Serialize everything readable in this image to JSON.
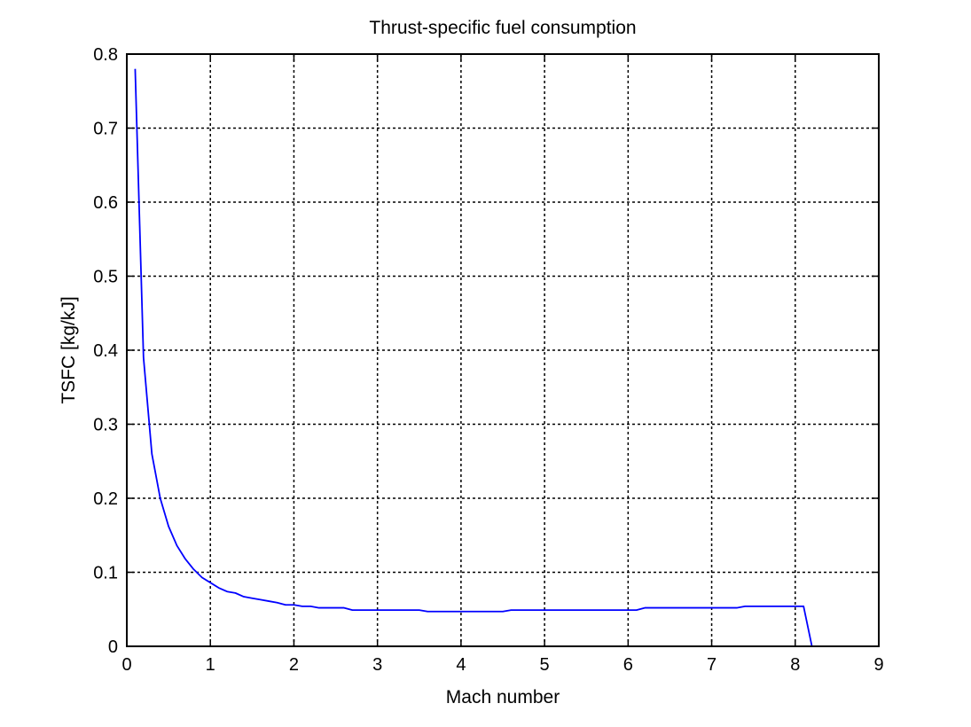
{
  "chart_data": {
    "type": "line",
    "title": "Thrust-specific fuel consumption",
    "xlabel": "Mach number",
    "ylabel": "TSFC [kg/kJ]",
    "xlim": [
      0,
      9
    ],
    "ylim": [
      0,
      0.8
    ],
    "xticks": [
      "0",
      "1",
      "2",
      "3",
      "4",
      "5",
      "6",
      "7",
      "8",
      "9"
    ],
    "yticks": [
      "0",
      "0.1",
      "0.2",
      "0.3",
      "0.4",
      "0.5",
      "0.6",
      "0.7",
      "0.8"
    ],
    "grid": true,
    "line_color": "#0000ff",
    "series": [
      {
        "x": [
          0.1,
          0.2,
          0.3,
          0.4,
          0.5,
          0.6,
          0.7,
          0.8,
          0.9,
          1.0,
          1.1,
          1.2,
          1.3,
          1.4,
          1.5,
          1.6,
          1.7,
          1.8,
          1.9,
          2.0,
          2.1,
          2.2,
          2.3,
          2.4,
          2.5,
          2.6,
          2.7,
          2.8,
          2.9,
          3.0,
          3.1,
          3.2,
          3.3,
          3.4,
          3.5,
          3.6,
          3.7,
          3.8,
          3.9,
          4.0,
          4.1,
          4.2,
          4.3,
          4.4,
          4.5,
          4.6,
          4.7,
          4.8,
          4.9,
          5.0,
          5.1,
          5.2,
          5.3,
          5.4,
          5.5,
          5.6,
          5.7,
          5.8,
          5.9,
          6.0,
          6.1,
          6.2,
          6.3,
          6.4,
          6.5,
          6.6,
          6.7,
          6.8,
          6.9,
          7.0,
          7.1,
          7.2,
          7.3,
          7.4,
          7.5,
          7.6,
          7.7,
          7.8,
          7.9,
          8.0,
          8.1,
          8.2
        ],
        "values": [
          0.78,
          0.39,
          0.26,
          0.2,
          0.162,
          0.136,
          0.118,
          0.104,
          0.093,
          0.086,
          0.079,
          0.074,
          0.072,
          0.067,
          0.065,
          0.063,
          0.061,
          0.059,
          0.056,
          0.056,
          0.054,
          0.054,
          0.052,
          0.052,
          0.052,
          0.052,
          0.049,
          0.049,
          0.049,
          0.049,
          0.049,
          0.049,
          0.049,
          0.049,
          0.049,
          0.047,
          0.047,
          0.047,
          0.047,
          0.047,
          0.047,
          0.047,
          0.047,
          0.047,
          0.047,
          0.049,
          0.049,
          0.049,
          0.049,
          0.049,
          0.049,
          0.049,
          0.049,
          0.049,
          0.049,
          0.049,
          0.049,
          0.049,
          0.049,
          0.049,
          0.049,
          0.052,
          0.052,
          0.052,
          0.052,
          0.052,
          0.052,
          0.052,
          0.052,
          0.052,
          0.052,
          0.052,
          0.052,
          0.054,
          0.054,
          0.054,
          0.054,
          0.054,
          0.054,
          0.054,
          0.054,
          0.0
        ]
      }
    ]
  }
}
